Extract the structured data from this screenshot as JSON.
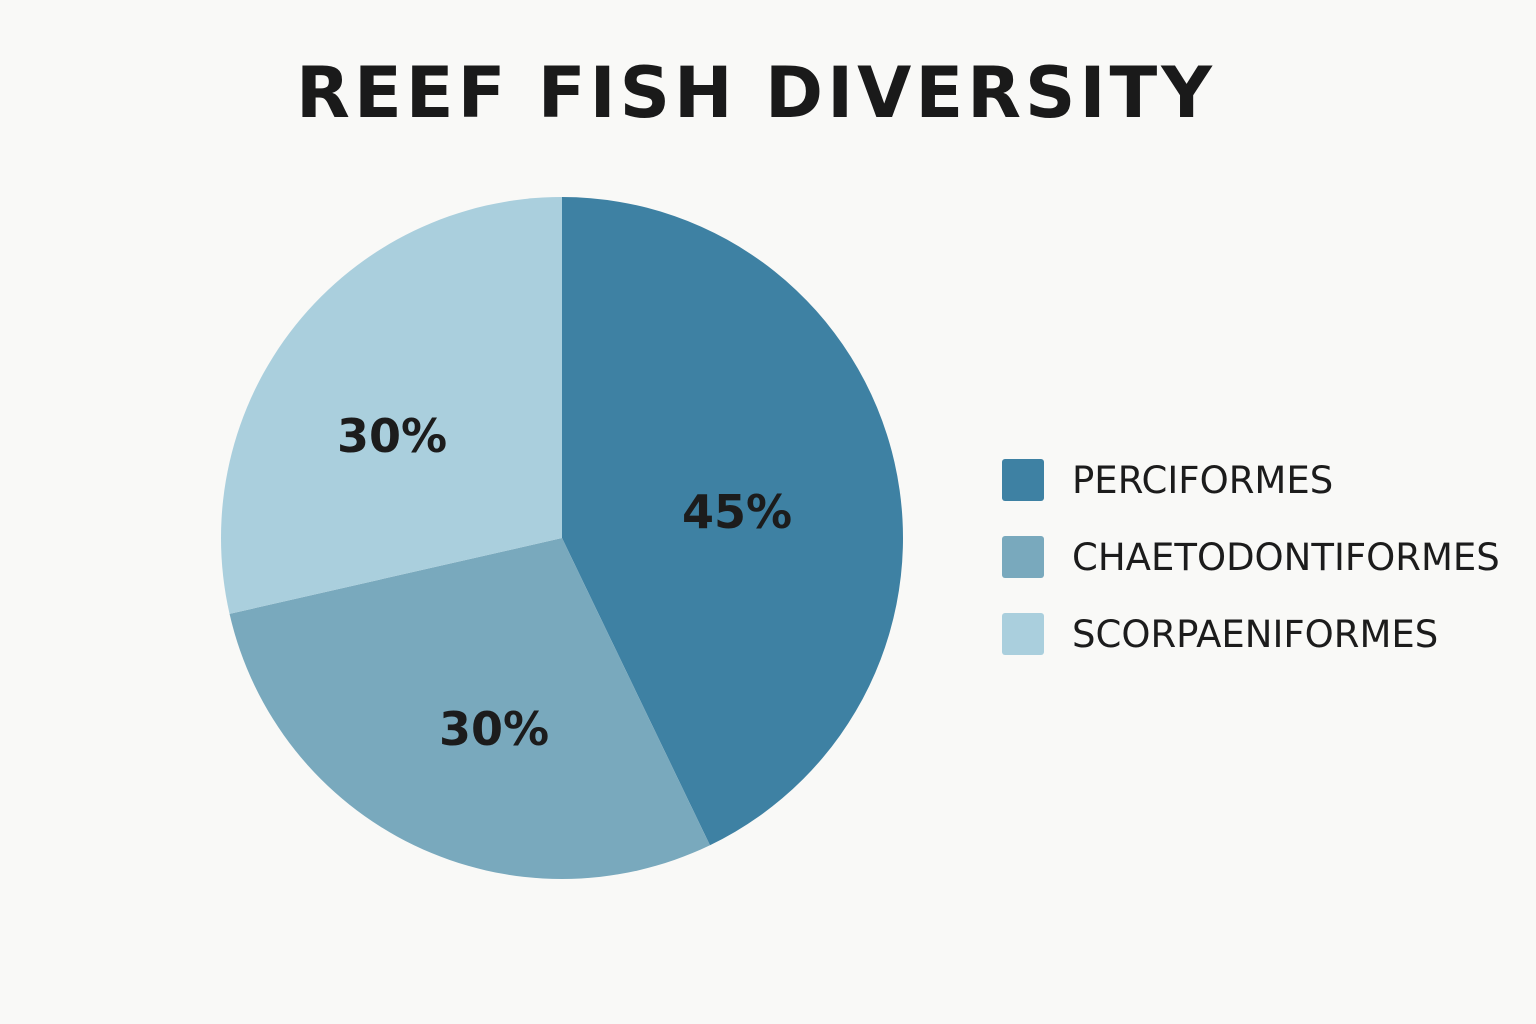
{
  "chart_data": {
    "type": "pie",
    "title": "REEF FISH DIVERSITY",
    "slices": [
      {
        "name": "PERCIFORMES",
        "value": 45,
        "label": "45%",
        "color": "#3e81a3"
      },
      {
        "name": "CHAETODONTIFORMES",
        "value": 30,
        "label": "30%",
        "color": "#79a9bd"
      },
      {
        "name": "SCORPAENIFORMES",
        "value": 30,
        "label": "30%",
        "color": "#aacfdd"
      }
    ],
    "legend": {
      "position": "right",
      "entries": [
        "PERCIFORMES",
        "CHAETODONTIFORMES",
        "SCORPAENIFORMES"
      ]
    }
  }
}
